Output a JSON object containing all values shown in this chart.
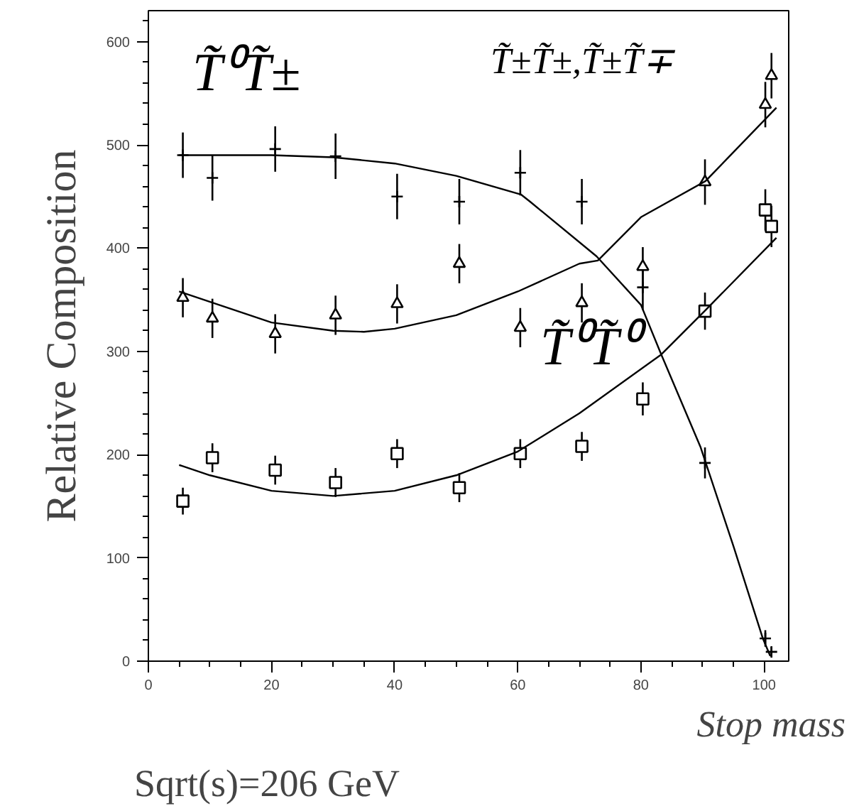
{
  "chart_data": {
    "type": "scatter",
    "xlabel": "Stop mass",
    "ylabel": "Relative Composition",
    "annotations": [
      "Sqrt(s)=206 GeV"
    ],
    "xlim": [
      0,
      104
    ],
    "ylim": [
      0,
      630
    ],
    "xticks": [
      0,
      {
        "value": 5,
        "label": null
      },
      {
        "value": 10,
        "label": null
      },
      {
        "value": 15,
        "label": null
      },
      20,
      {
        "value": 25,
        "label": null
      },
      {
        "value": 30,
        "label": null
      },
      {
        "value": 35,
        "label": null
      },
      40,
      {
        "value": 45,
        "label": null
      },
      {
        "value": 50,
        "label": null
      },
      {
        "value": 55,
        "label": null
      },
      60,
      {
        "value": 65,
        "label": null
      },
      {
        "value": 70,
        "label": null
      },
      {
        "value": 75,
        "label": null
      },
      80,
      {
        "value": 85,
        "label": null
      },
      {
        "value": 90,
        "label": null
      },
      {
        "value": 95,
        "label": null
      },
      100
    ],
    "yticks": [
      0,
      {
        "value": 20,
        "label": null
      },
      {
        "value": 40,
        "label": null
      },
      {
        "value": 60,
        "label": null
      },
      {
        "value": 80,
        "label": null
      },
      100,
      {
        "value": 120,
        "label": null
      },
      {
        "value": 140,
        "label": null
      },
      {
        "value": 160,
        "label": null
      },
      {
        "value": 180,
        "label": null
      },
      200,
      {
        "value": 220,
        "label": null
      },
      {
        "value": 240,
        "label": null
      },
      {
        "value": 260,
        "label": null
      },
      {
        "value": 280,
        "label": null
      },
      300,
      {
        "value": 320,
        "label": null
      },
      {
        "value": 340,
        "label": null
      },
      {
        "value": 360,
        "label": null
      },
      {
        "value": 380,
        "label": null
      },
      400,
      {
        "value": 420,
        "label": null
      },
      {
        "value": 440,
        "label": null
      },
      {
        "value": 460,
        "label": null
      },
      {
        "value": 480,
        "label": null
      },
      500,
      {
        "value": 520,
        "label": null
      },
      {
        "value": 540,
        "label": null
      },
      {
        "value": 560,
        "label": null
      },
      {
        "value": 580,
        "label": null
      },
      600,
      {
        "value": 620,
        "label": null
      }
    ],
    "grid": false,
    "series": [
      {
        "name": "T̃⁰T̃±",
        "marker": "cross",
        "color": "#000000",
        "x": [
          5.6,
          10.4,
          20.6,
          30.4,
          40.4,
          50.5,
          60.4,
          70.4,
          80.3,
          90.4,
          100.2,
          101.2
        ],
        "values": [
          490,
          468,
          496,
          489,
          450,
          445,
          473,
          445,
          362,
          192,
          22,
          9
        ],
        "errors": [
          22,
          22,
          22,
          22,
          22,
          22,
          22,
          22,
          22,
          15,
          8,
          5
        ]
      },
      {
        "name": "T̃±T̃±,T̃±T̃∓",
        "marker": "triangle",
        "color": "#000000",
        "x": [
          5.6,
          10.4,
          20.6,
          30.4,
          40.4,
          50.5,
          60.4,
          70.4,
          80.3,
          90.4,
          100.2,
          101.2
        ],
        "values": [
          352,
          332,
          317,
          335,
          346,
          385,
          323,
          347,
          382,
          464,
          539,
          567
        ],
        "errors": [
          19,
          19,
          19,
          19,
          19,
          19,
          19,
          19,
          19,
          22,
          22,
          22
        ]
      },
      {
        "name": "T̃⁰T̃⁰",
        "marker": "square",
        "color": "#000000",
        "x": [
          5.6,
          10.4,
          20.6,
          30.4,
          40.4,
          50.5,
          60.4,
          70.4,
          80.3,
          90.4,
          100.2,
          101.2
        ],
        "values": [
          155,
          197,
          185,
          173,
          201,
          168,
          201,
          208,
          254,
          339,
          437,
          421
        ],
        "errors": [
          13,
          14,
          14,
          14,
          14,
          14,
          14,
          14,
          16,
          18,
          20,
          20
        ]
      },
      {
        "type": "line",
        "color": "#000000",
        "x": [
          5,
          20,
          30,
          40,
          50,
          60.5,
          62,
          72.8,
          80,
          83.3,
          89.7,
          95.1,
          99.8,
          101
        ],
        "values": [
          490,
          490,
          488,
          482,
          470,
          452,
          445,
          392,
          345,
          297,
          207,
          110,
          22,
          5
        ]
      },
      {
        "type": "line",
        "color": "#000000",
        "x": [
          5,
          20,
          30,
          35,
          40,
          50,
          60,
          70,
          73,
          80,
          90.5,
          102
        ],
        "values": [
          358,
          328,
          320,
          319,
          322,
          335,
          358,
          385,
          388,
          430,
          465,
          536
        ]
      },
      {
        "type": "line",
        "color": "#000000",
        "x": [
          5,
          10,
          20,
          30,
          40,
          50,
          60,
          70,
          83.3,
          90.5,
          102
        ],
        "values": [
          190,
          180,
          165,
          160,
          165,
          180,
          203,
          240,
          297,
          340,
          410
        ]
      }
    ]
  }
}
